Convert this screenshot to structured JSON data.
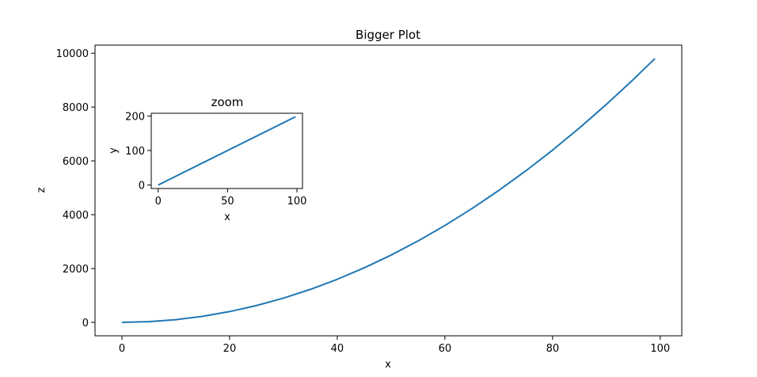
{
  "chart_data": [
    {
      "type": "line",
      "title": "Bigger Plot",
      "xlabel": "x",
      "ylabel": "z",
      "xlim": [
        -5,
        104
      ],
      "ylim": [
        -500,
        10300
      ],
      "xticks": [
        0,
        20,
        40,
        60,
        80,
        100
      ],
      "yticks": [
        0,
        2000,
        4000,
        6000,
        8000,
        10000
      ],
      "grid": false,
      "color": "#1f77b4",
      "function": "z = x^2",
      "series": [
        {
          "x": [
            0,
            5,
            10,
            15,
            20,
            25,
            30,
            35,
            40,
            45,
            50,
            55,
            60,
            65,
            70,
            75,
            80,
            85,
            90,
            95,
            99
          ],
          "y": [
            0,
            25,
            100,
            225,
            400,
            625,
            900,
            1225,
            1600,
            2025,
            2500,
            3025,
            3600,
            4225,
            4900,
            5625,
            6400,
            7225,
            8100,
            9025,
            9801
          ]
        }
      ]
    },
    {
      "type": "line",
      "title": "zoom",
      "xlabel": "x",
      "ylabel": "y",
      "xlim": [
        -5,
        104
      ],
      "ylim": [
        -10,
        208
      ],
      "xticks": [
        0,
        50,
        100
      ],
      "yticks": [
        0,
        100,
        200
      ],
      "grid": false,
      "color": "#1f77b4",
      "function": "y = 2x",
      "series": [
        {
          "x": [
            0,
            99
          ],
          "y": [
            0,
            198
          ]
        }
      ]
    }
  ]
}
